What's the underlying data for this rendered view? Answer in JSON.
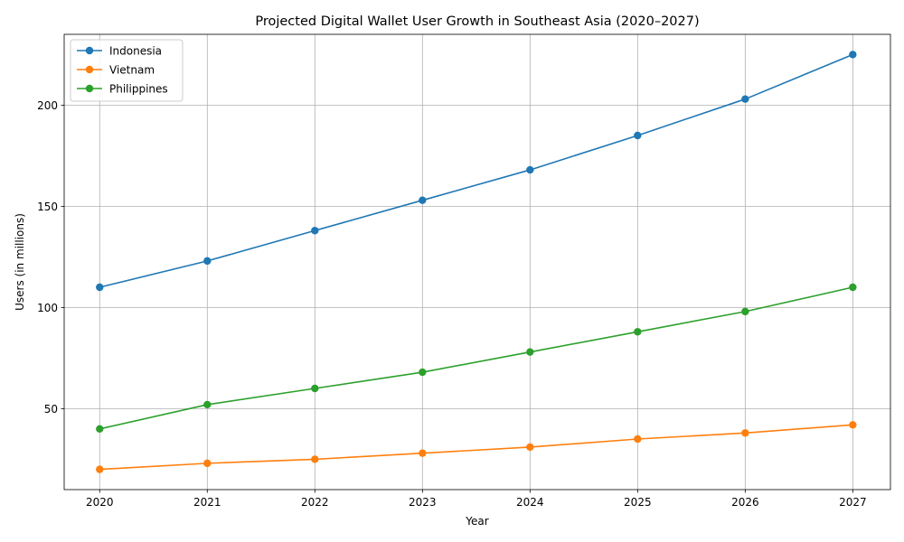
{
  "chart_data": {
    "type": "line",
    "title": "Projected Digital Wallet User Growth in Southeast Asia (2020–2027)",
    "xlabel": "Year",
    "ylabel": "Users (in millions)",
    "x": [
      2020,
      2021,
      2022,
      2023,
      2024,
      2025,
      2026,
      2027
    ],
    "x_tick_labels": [
      "2020",
      "2021",
      "2022",
      "2023",
      "2024",
      "2025",
      "2026",
      "2027"
    ],
    "y_ticks": [
      50,
      100,
      150,
      200
    ],
    "y_tick_labels": [
      "50",
      "100",
      "150",
      "200"
    ],
    "xlim": [
      2019.67,
      2027.35
    ],
    "ylim": [
      10,
      235
    ],
    "grid": true,
    "legend_position": "top-left",
    "markers": "circle",
    "series": [
      {
        "name": "Indonesia",
        "color": "#1f77b4",
        "values": [
          110,
          123,
          138,
          153,
          168,
          185,
          203,
          225
        ]
      },
      {
        "name": "Vietnam",
        "color": "#ff7f0e",
        "values": [
          20,
          23,
          25,
          28,
          31,
          35,
          38,
          42
        ]
      },
      {
        "name": "Philippines",
        "color": "#2ca02c",
        "values": [
          40,
          52,
          60,
          68,
          78,
          88,
          98,
          110
        ]
      }
    ]
  }
}
